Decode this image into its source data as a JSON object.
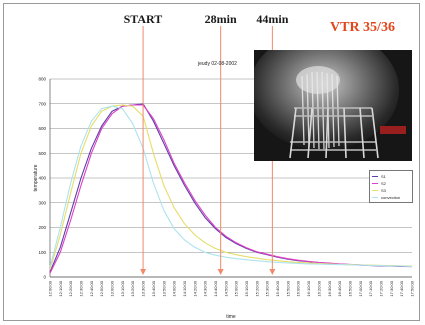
{
  "chart_data": {
    "type": "line",
    "title": "VTR 35/36",
    "annotation": "jeudy 02-08-2002",
    "ylabel": "temperature",
    "xlabel": "time",
    "ylim": [
      0,
      800
    ],
    "y_ticks": [
      "0",
      "100",
      "200",
      "300",
      "400",
      "500",
      "600",
      "700",
      "800"
    ],
    "x_ticks": [
      "12:00:00",
      "12:10:00",
      "12:20:00",
      "12:30:00",
      "12:40:00",
      "12:50:00",
      "13:00:00",
      "13:10:00",
      "13:20:00",
      "13:30:00",
      "13:40:00",
      "13:50:00",
      "14:00:00",
      "14:10:00",
      "14:20:00",
      "14:30:00",
      "14:40:00",
      "14:50:00",
      "15:00:00",
      "15:10:00",
      "15:20:00",
      "15:30:00",
      "15:40:00",
      "15:50:00",
      "16:00:00",
      "16:10:00",
      "16:20:00",
      "16:30:00",
      "16:40:00",
      "16:50:00",
      "17:00:00",
      "17:10:00",
      "17:20:00",
      "17:30:00",
      "17:40:00",
      "17:50:00"
    ],
    "markers": [
      {
        "label": "START",
        "x_index": 9.0
      },
      {
        "label": "28min",
        "x_index": 16.5
      },
      {
        "label": "44min",
        "x_index": 21.5
      }
    ],
    "series": [
      {
        "name": "S1",
        "color": "#5b3fa8",
        "points": [
          [
            0,
            20
          ],
          [
            1,
            120
          ],
          [
            2,
            260
          ],
          [
            3,
            400
          ],
          [
            4,
            520
          ],
          [
            5,
            610
          ],
          [
            6,
            670
          ],
          [
            7,
            690
          ],
          [
            8,
            695
          ],
          [
            9,
            700
          ],
          [
            10,
            630
          ],
          [
            11,
            540
          ],
          [
            12,
            450
          ],
          [
            13,
            370
          ],
          [
            14,
            300
          ],
          [
            15,
            240
          ],
          [
            16,
            195
          ],
          [
            17,
            160
          ],
          [
            18,
            135
          ],
          [
            19,
            115
          ],
          [
            20,
            100
          ],
          [
            21,
            90
          ],
          [
            22,
            80
          ],
          [
            23,
            72
          ],
          [
            24,
            66
          ],
          [
            25,
            62
          ],
          [
            26,
            58
          ],
          [
            27,
            55
          ],
          [
            28,
            52
          ],
          [
            29,
            50
          ],
          [
            30,
            48
          ],
          [
            31,
            46
          ],
          [
            32,
            45
          ],
          [
            33,
            44
          ],
          [
            34,
            43
          ],
          [
            35,
            42
          ]
        ]
      },
      {
        "name": "S2",
        "color": "#e040c8",
        "points": [
          [
            0,
            15
          ],
          [
            1,
            100
          ],
          [
            2,
            230
          ],
          [
            3,
            370
          ],
          [
            4,
            500
          ],
          [
            5,
            600
          ],
          [
            6,
            660
          ],
          [
            7,
            690
          ],
          [
            8,
            695
          ],
          [
            9,
            695
          ],
          [
            10,
            640
          ],
          [
            11,
            555
          ],
          [
            12,
            460
          ],
          [
            13,
            380
          ],
          [
            14,
            310
          ],
          [
            15,
            250
          ],
          [
            16,
            200
          ],
          [
            17,
            165
          ],
          [
            18,
            138
          ],
          [
            19,
            118
          ],
          [
            20,
            102
          ],
          [
            21,
            92
          ],
          [
            22,
            82
          ],
          [
            23,
            74
          ],
          [
            24,
            68
          ],
          [
            25,
            63
          ],
          [
            26,
            59
          ],
          [
            27,
            56
          ],
          [
            28,
            53
          ],
          [
            29,
            51
          ],
          [
            30,
            49
          ],
          [
            31,
            47
          ],
          [
            32,
            46
          ],
          [
            33,
            45
          ],
          [
            34,
            44
          ],
          [
            35,
            43
          ]
        ]
      },
      {
        "name": "S3",
        "color": "#e6dd6a",
        "points": [
          [
            0,
            30
          ],
          [
            1,
            170
          ],
          [
            2,
            340
          ],
          [
            3,
            500
          ],
          [
            4,
            610
          ],
          [
            5,
            670
          ],
          [
            6,
            690
          ],
          [
            7,
            695
          ],
          [
            8,
            690
          ],
          [
            9,
            650
          ],
          [
            10,
            500
          ],
          [
            11,
            370
          ],
          [
            12,
            280
          ],
          [
            13,
            215
          ],
          [
            14,
            170
          ],
          [
            15,
            138
          ],
          [
            16,
            115
          ],
          [
            17,
            100
          ],
          [
            18,
            90
          ],
          [
            19,
            82
          ],
          [
            20,
            76
          ],
          [
            21,
            70
          ],
          [
            22,
            66
          ],
          [
            23,
            62
          ],
          [
            24,
            59
          ],
          [
            25,
            57
          ],
          [
            26,
            55
          ],
          [
            27,
            53
          ],
          [
            28,
            51
          ],
          [
            29,
            50
          ],
          [
            30,
            49
          ],
          [
            31,
            48
          ],
          [
            32,
            47
          ],
          [
            33,
            46
          ],
          [
            34,
            45
          ],
          [
            35,
            44
          ]
        ]
      },
      {
        "name": "convection",
        "color": "#aee3ee",
        "points": [
          [
            0,
            40
          ],
          [
            1,
            200
          ],
          [
            2,
            380
          ],
          [
            3,
            530
          ],
          [
            4,
            630
          ],
          [
            5,
            680
          ],
          [
            6,
            690
          ],
          [
            7,
            680
          ],
          [
            8,
            620
          ],
          [
            9,
            520
          ],
          [
            10,
            380
          ],
          [
            11,
            270
          ],
          [
            12,
            195
          ],
          [
            13,
            150
          ],
          [
            14,
            120
          ],
          [
            15,
            100
          ],
          [
            16,
            88
          ],
          [
            17,
            80
          ],
          [
            18,
            74
          ],
          [
            19,
            70
          ],
          [
            20,
            66
          ],
          [
            21,
            62
          ],
          [
            22,
            59
          ],
          [
            23,
            57
          ],
          [
            24,
            55
          ],
          [
            25,
            53
          ],
          [
            26,
            52
          ],
          [
            27,
            51
          ],
          [
            28,
            50
          ],
          [
            29,
            49
          ],
          [
            30,
            48
          ],
          [
            31,
            47
          ],
          [
            32,
            46
          ],
          [
            33,
            45
          ],
          [
            34,
            44
          ],
          [
            35,
            43
          ]
        ]
      }
    ]
  },
  "colors": {
    "marker_line": "#f08a6a",
    "title": "#e2461b",
    "grid": "#8c8c8c"
  }
}
